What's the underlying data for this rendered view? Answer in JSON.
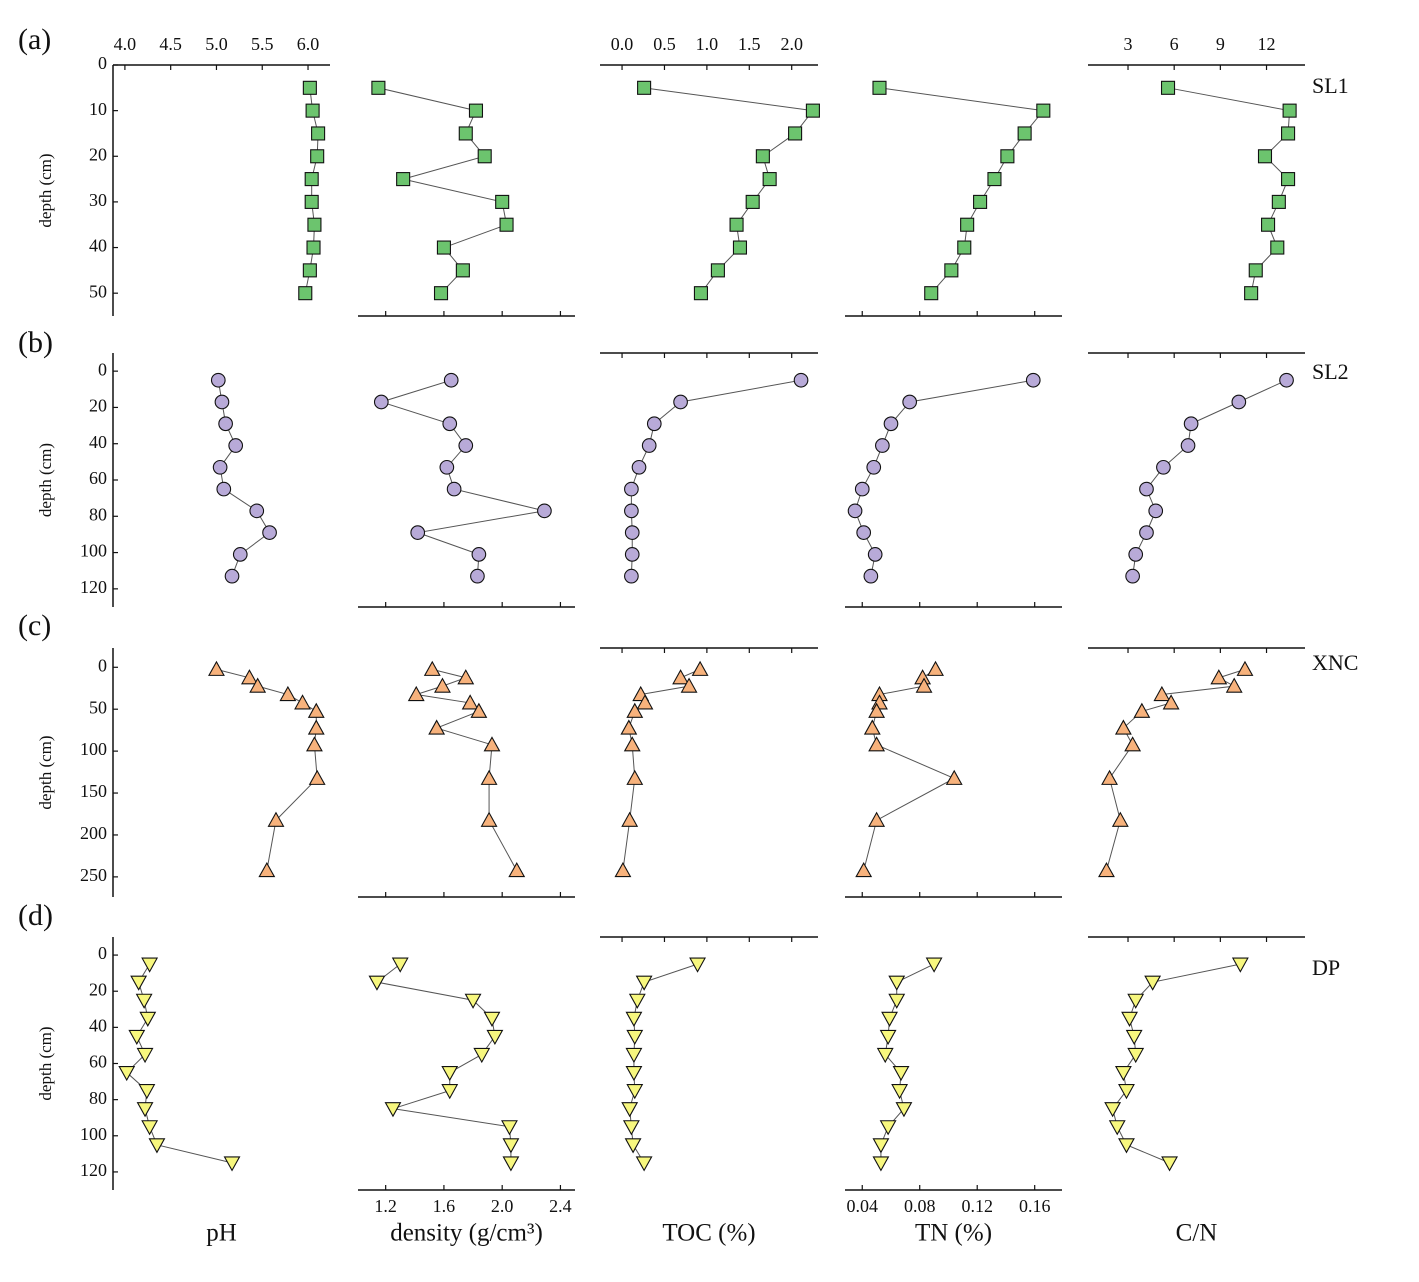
{
  "chart_data": {
    "type": "line",
    "yinvert": true,
    "line_color": "#555555",
    "columns": [
      {
        "xlabel": "pH",
        "xlim": [
          3.87,
          6.24
        ],
        "xaxis": "top",
        "xticks": [
          {
            "value": 4,
            "label": "4.0"
          },
          4.5,
          {
            "value": 5,
            "label": "5.0"
          },
          5.5,
          {
            "value": 6,
            "label": "6.0"
          }
        ]
      },
      {
        "xlabel": "density (g/cm³)",
        "xlim": [
          1.01,
          2.5
        ],
        "xaxis": "bottom",
        "xticks": [
          1.2,
          1.6,
          {
            "value": 2,
            "label": "2.0"
          },
          2.4
        ]
      },
      {
        "xlabel": "TOC (%)",
        "xlim": [
          -0.26,
          2.31
        ],
        "xaxis": "top",
        "xticks": [
          {
            "value": 0,
            "label": "0.0"
          },
          0.5,
          {
            "value": 1,
            "label": "1.0"
          },
          1.5,
          {
            "value": 2,
            "label": "2.0"
          }
        ]
      },
      {
        "xlabel": "TN (%)",
        "xlim": [
          0.028,
          0.179
        ],
        "xaxis": "bottom",
        "xticks": [
          0.04,
          0.08,
          0.12,
          0.16
        ]
      },
      {
        "xlabel": "C/N",
        "xlim": [
          0.4,
          14.5
        ],
        "xaxis": "top",
        "xticks": [
          3,
          6,
          9,
          12
        ]
      }
    ],
    "rows": [
      {
        "label": "(a)",
        "site": "SL1",
        "ylabel": "depth (cm)",
        "marker": "square",
        "color": "#6cc46e",
        "ylim": [
          0,
          55
        ],
        "yticks": [
          0,
          10,
          20,
          30,
          40,
          50
        ],
        "depth": [
          5,
          10,
          15,
          20,
          25,
          30,
          35,
          40,
          45,
          50
        ],
        "series": [
          {
            "values": [
              6.02,
              6.05,
              6.11,
              6.1,
              6.04,
              6.04,
              6.07,
              6.06,
              6.02,
              5.97
            ]
          },
          {
            "values": [
              1.15,
              1.82,
              1.75,
              1.88,
              1.32,
              2.0,
              2.03,
              1.6,
              1.73,
              1.58
            ]
          },
          {
            "values": [
              0.26,
              2.25,
              2.04,
              1.66,
              1.74,
              1.54,
              1.35,
              1.39,
              1.13,
              0.93
            ]
          },
          {
            "values": [
              0.052,
              0.166,
              0.153,
              0.141,
              0.132,
              0.122,
              0.113,
              0.111,
              0.102,
              0.088
            ]
          },
          {
            "values": [
              5.6,
              13.5,
              13.4,
              11.9,
              13.4,
              12.8,
              12.1,
              12.7,
              11.3,
              11.0
            ]
          }
        ]
      },
      {
        "label": "(b)",
        "site": "SL2",
        "ylabel": "depth (cm)",
        "marker": "circle",
        "color": "#b8aad8",
        "ylim": [
          -10,
          130
        ],
        "yticks": [
          0,
          20,
          40,
          60,
          80,
          100,
          120
        ],
        "depth": [
          5,
          17,
          29,
          41,
          53,
          65,
          77,
          89,
          101,
          113
        ],
        "series": [
          {
            "values": [
              5.02,
              5.06,
              5.1,
              5.21,
              5.04,
              5.08,
              5.44,
              5.58,
              5.26,
              5.17
            ]
          },
          {
            "values": [
              1.65,
              1.17,
              1.64,
              1.75,
              1.62,
              1.67,
              2.29,
              1.42,
              1.84,
              1.83
            ]
          },
          {
            "values": [
              2.11,
              0.69,
              0.38,
              0.32,
              0.2,
              0.11,
              0.11,
              0.12,
              0.12,
              0.11
            ]
          },
          {
            "values": [
              0.159,
              0.073,
              0.06,
              0.054,
              0.048,
              0.04,
              0.035,
              0.041,
              0.049,
              0.046
            ]
          },
          {
            "values": [
              13.3,
              10.2,
              7.1,
              6.9,
              5.3,
              4.2,
              4.8,
              4.2,
              3.5,
              3.3
            ]
          }
        ]
      },
      {
        "label": "(c)",
        "site": "XNC",
        "ylabel": "depth (cm)",
        "marker": "triangle-up",
        "color": "#f7b27c",
        "ylim": [
          -23,
          274
        ],
        "yticks": [
          0,
          50,
          100,
          150,
          200,
          250
        ],
        "depth": [
          2.5,
          12.5,
          22.5,
          32.5,
          42.5,
          52.5,
          72.5,
          92.5,
          132.5,
          182.5,
          242.5
        ],
        "series": [
          {
            "values": [
              5.0,
              5.36,
              5.45,
              5.78,
              5.94,
              6.09,
              6.09,
              6.07,
              6.1,
              5.65,
              5.55
            ]
          },
          {
            "values": [
              1.52,
              1.75,
              1.59,
              1.41,
              1.78,
              1.84,
              1.55,
              1.93,
              1.91,
              1.91,
              2.1
            ]
          },
          {
            "values": [
              0.92,
              0.69,
              0.79,
              0.22,
              0.27,
              0.15,
              0.08,
              0.12,
              0.15,
              0.09,
              0.01
            ]
          },
          {
            "values": [
              0.091,
              0.082,
              0.083,
              0.052,
              0.052,
              0.05,
              0.047,
              0.05,
              0.104,
              0.05,
              0.041
            ]
          },
          {
            "values": [
              10.6,
              8.9,
              9.9,
              5.2,
              5.8,
              3.9,
              2.7,
              3.3,
              1.8,
              2.5,
              1.6
            ]
          }
        ]
      },
      {
        "label": "(d)",
        "site": "DP",
        "ylabel": "depth (cm)",
        "marker": "triangle-down",
        "color": "#f7f77e",
        "ylim": [
          -10,
          130
        ],
        "yticks": [
          0,
          20,
          40,
          60,
          80,
          100,
          120
        ],
        "depth": [
          5,
          15,
          25,
          35,
          45,
          55,
          65,
          75,
          85,
          95,
          105,
          115
        ],
        "series": [
          {
            "values": [
              4.27,
              4.15,
              4.21,
              4.25,
              4.13,
              4.22,
              4.02,
              4.24,
              4.22,
              4.27,
              4.35,
              5.17
            ]
          },
          {
            "values": [
              1.3,
              1.14,
              1.8,
              1.93,
              1.95,
              1.86,
              1.64,
              1.64,
              1.25,
              2.05,
              2.06,
              2.06
            ]
          },
          {
            "values": [
              0.89,
              0.26,
              0.18,
              0.14,
              0.15,
              0.14,
              0.14,
              0.15,
              0.09,
              0.11,
              0.13,
              0.26
            ]
          },
          {
            "values": [
              0.09,
              0.064,
              0.064,
              0.059,
              0.058,
              0.056,
              0.067,
              0.066,
              0.069,
              0.058,
              0.053,
              0.053
            ]
          },
          {
            "values": [
              10.3,
              4.6,
              3.5,
              3.1,
              3.4,
              3.5,
              2.7,
              2.9,
              2.0,
              2.3,
              2.9,
              5.7
            ]
          }
        ]
      }
    ]
  }
}
